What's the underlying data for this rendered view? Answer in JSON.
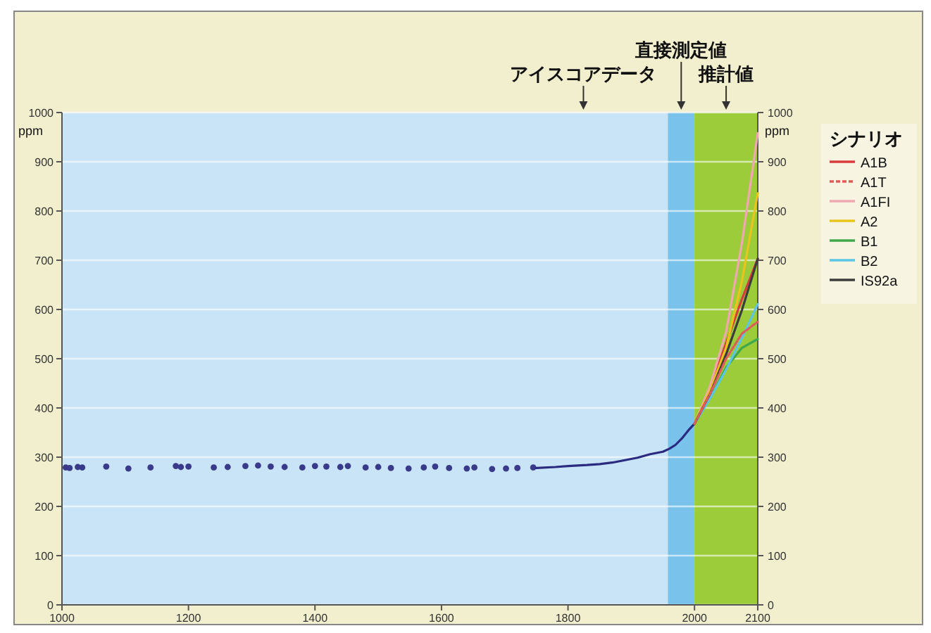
{
  "chart_data": {
    "type": "line",
    "xlim": [
      1000,
      2100
    ],
    "xticks": [
      1000,
      1200,
      1400,
      1600,
      1800,
      2000,
      2100
    ],
    "ylim": [
      0,
      1000
    ],
    "yticks": [
      0,
      100,
      200,
      300,
      400,
      500,
      600,
      700,
      800,
      900,
      1000
    ],
    "ylabel": "ppm",
    "y2lim": [
      0,
      1000
    ],
    "y2ticks": [
      0,
      100,
      200,
      300,
      400,
      500,
      600,
      700,
      800,
      900,
      1000
    ],
    "y2label": "ppm",
    "grid": "y",
    "legend": "right",
    "legend_title": "シナリオ",
    "bands": [
      {
        "axis": "x",
        "from": 1000,
        "to": 1958,
        "label": "アイスコアデータ",
        "color": "#c8e4f6"
      },
      {
        "axis": "x",
        "from": 1958,
        "to": 2000,
        "label": "直接測定値",
        "color": "#78c2ec"
      },
      {
        "axis": "x",
        "from": 2000,
        "to": 2100,
        "label": "推計値",
        "color": "#9ccc3a"
      }
    ],
    "series": [
      {
        "type": "scatter",
        "color": "#3a3a8a",
        "x": [
          1006,
          1012,
          1025,
          1032,
          1070,
          1105,
          1140,
          1180,
          1188,
          1200,
          1240,
          1262,
          1290,
          1310,
          1330,
          1352,
          1380,
          1400,
          1418,
          1440,
          1452,
          1480,
          1500,
          1520,
          1548,
          1572,
          1590,
          1612,
          1640,
          1652,
          1680,
          1702,
          1720,
          1745
        ],
        "values": [
          279,
          278,
          280,
          279,
          281,
          277,
          279,
          282,
          280,
          281,
          279,
          280,
          282,
          283,
          281,
          280,
          279,
          282,
          281,
          280,
          282,
          279,
          280,
          278,
          277,
          279,
          281,
          278,
          277,
          279,
          276,
          277,
          278,
          279
        ]
      },
      {
        "type": "line",
        "color": "#2a2a80",
        "x": [
          1750,
          1780,
          1800,
          1830,
          1850,
          1870,
          1890,
          1910,
          1930,
          1950,
          1960,
          1970,
          1980,
          1990,
          2000
        ],
        "values": [
          278,
          280,
          282,
          284,
          286,
          289,
          294,
          299,
          306,
          311,
          317,
          325,
          338,
          354,
          368
        ]
      },
      {
        "name": "A1B",
        "color": "#d83c3c",
        "line_style": "solid",
        "x": [
          2000,
          2025,
          2050,
          2075,
          2100
        ],
        "values": [
          368,
          440,
          532,
          621,
          703
        ]
      },
      {
        "name": "A1T",
        "color": "#e05a5a",
        "line_style": "dashed",
        "x": [
          2000,
          2025,
          2050,
          2075,
          2100
        ],
        "values": [
          368,
          430,
          500,
          551,
          575
        ]
      },
      {
        "name": "A1FI",
        "color": "#f0a8b0",
        "line_style": "solid",
        "x": [
          2000,
          2025,
          2050,
          2075,
          2100
        ],
        "values": [
          368,
          446,
          555,
          735,
          958
        ]
      },
      {
        "name": "A2",
        "color": "#e8c41c",
        "line_style": "solid",
        "x": [
          2000,
          2025,
          2050,
          2075,
          2100
        ],
        "values": [
          368,
          437,
          522,
          658,
          836
        ]
      },
      {
        "name": "B1",
        "color": "#3ea84a",
        "line_style": "solid",
        "x": [
          2000,
          2025,
          2050,
          2075,
          2100
        ],
        "values": [
          368,
          421,
          482,
          522,
          540
        ]
      },
      {
        "name": "B2",
        "color": "#5cc4e4",
        "line_style": "solid",
        "x": [
          2000,
          2025,
          2050,
          2075,
          2100
        ],
        "values": [
          368,
          420,
          478,
          542,
          611
        ]
      },
      {
        "name": "IS92a",
        "color": "#3c3c3c",
        "line_style": "solid",
        "x": [
          2000,
          2025,
          2050,
          2075,
          2100
        ],
        "values": [
          368,
          430,
          509,
          599,
          703
        ]
      }
    ]
  }
}
